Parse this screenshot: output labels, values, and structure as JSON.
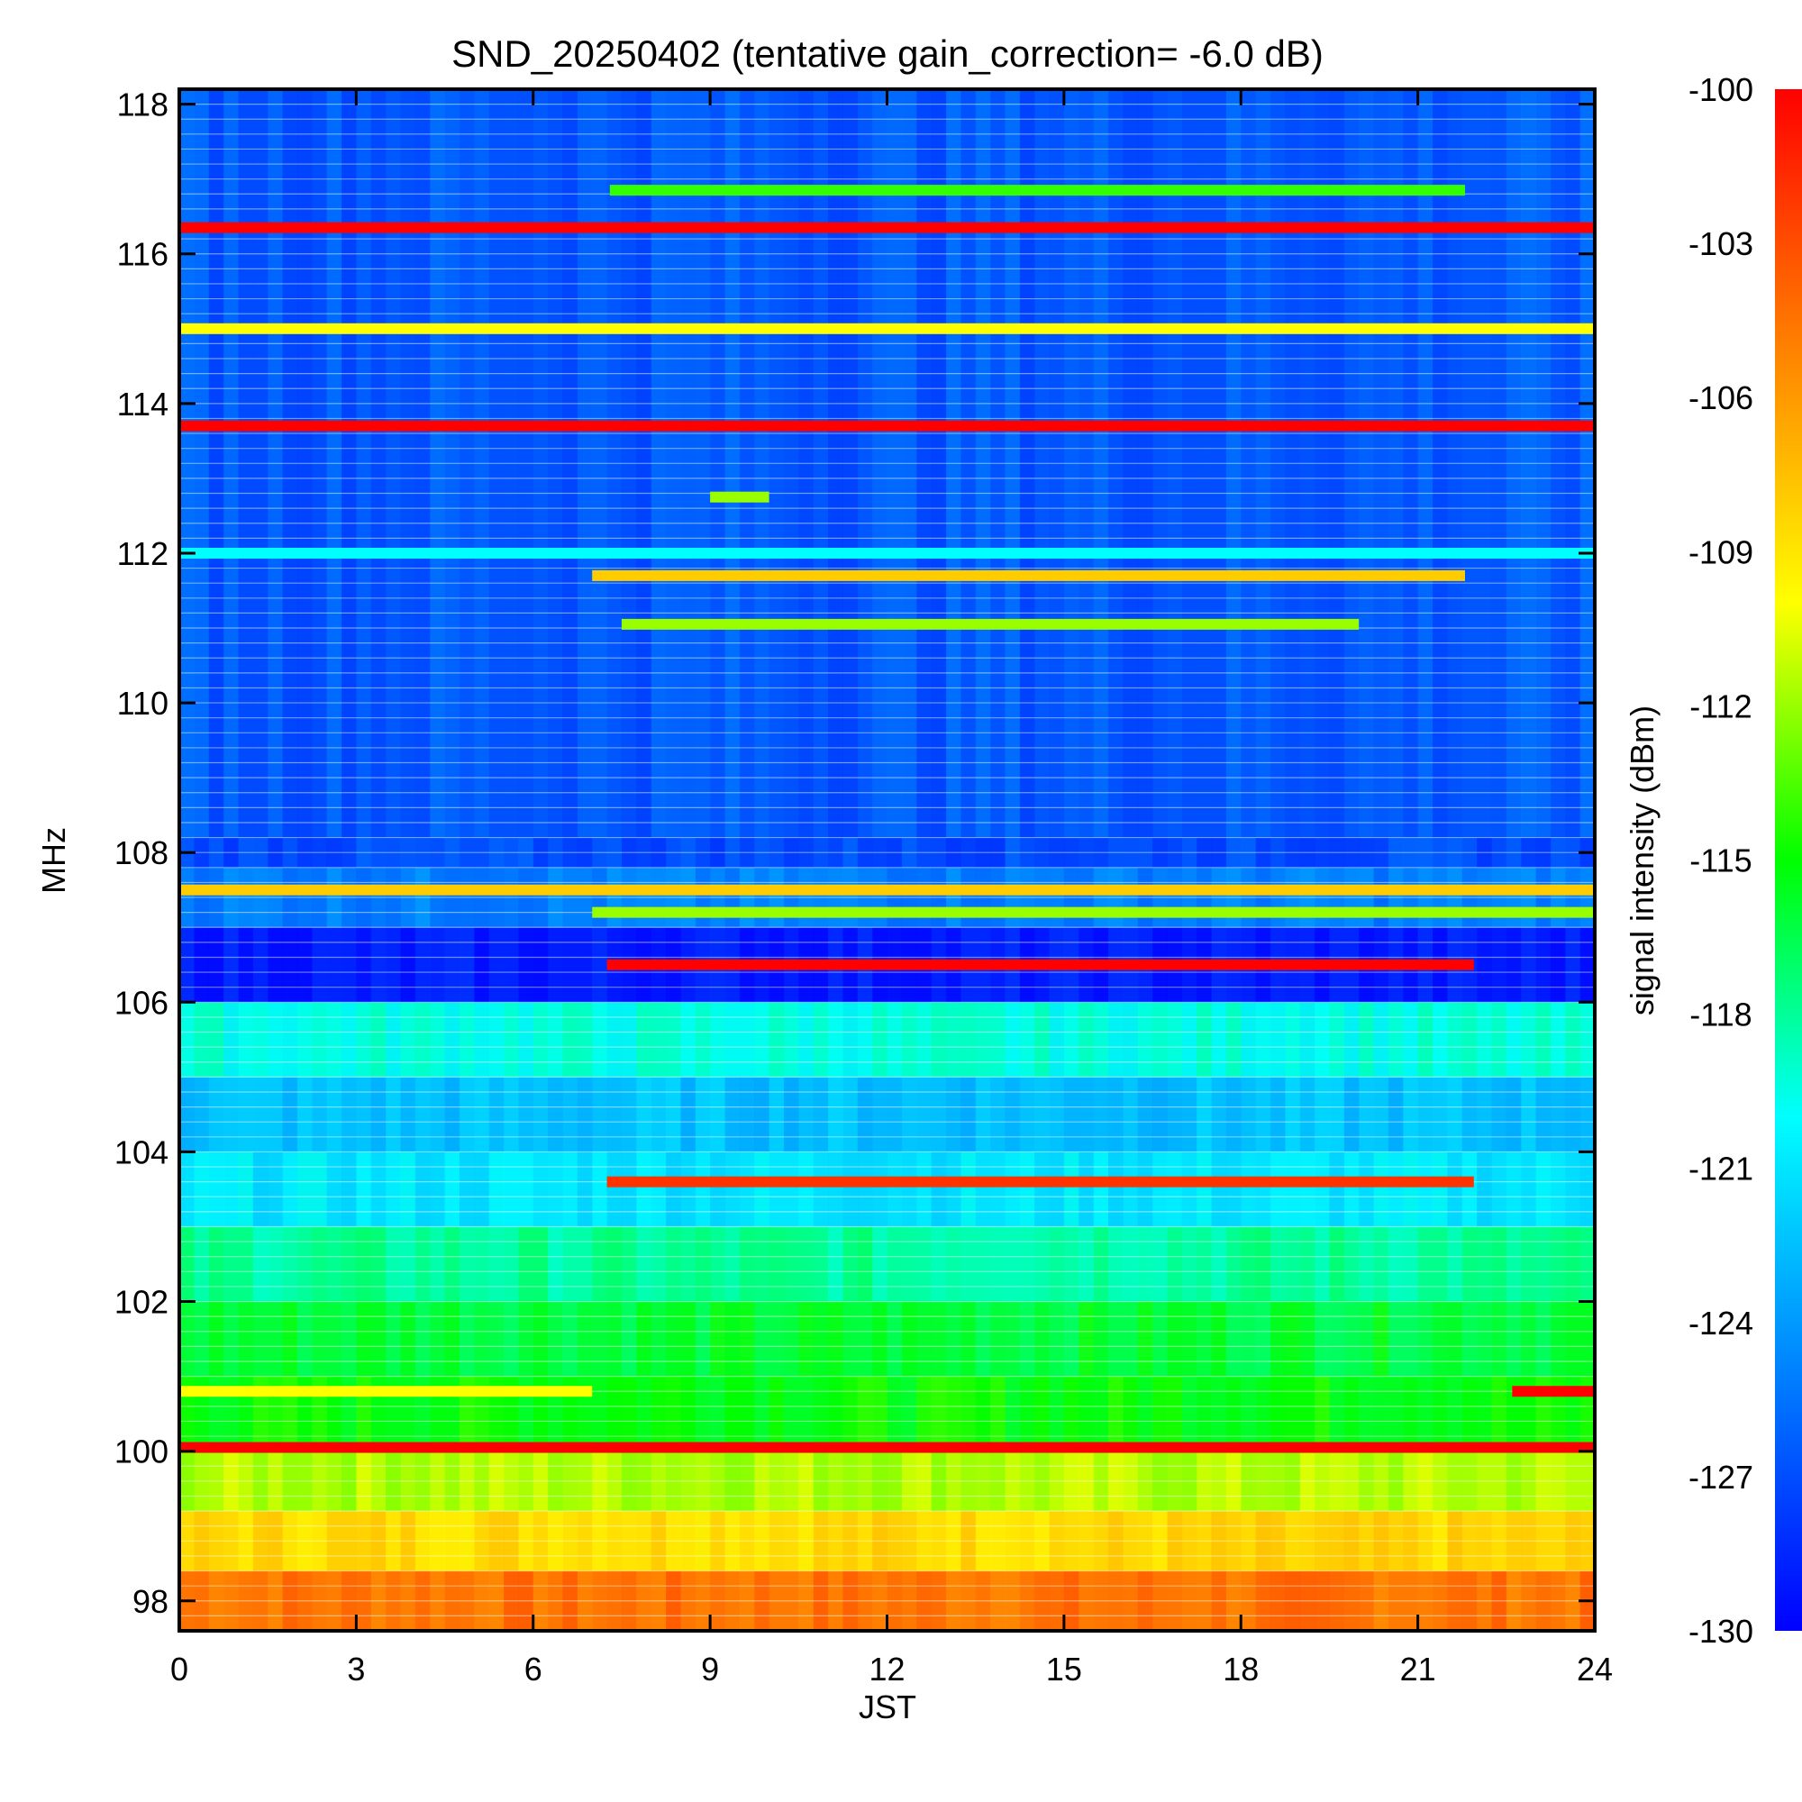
{
  "chart_data": {
    "type": "heatmap",
    "title": "SND_20250402 (tentative gain_correction= -6.0 dB)",
    "xlabel": "JST",
    "ylabel": "MHz",
    "colorbar_label": "signal intensity (dBm)",
    "xlim": [
      0,
      24
    ],
    "ylim": [
      97.6,
      118.2
    ],
    "x_ticks": [
      "0",
      "3",
      "6",
      "9",
      "12",
      "15",
      "18",
      "21",
      "24"
    ],
    "y_ticks": [
      "98",
      "100",
      "102",
      "104",
      "106",
      "108",
      "110",
      "112",
      "114",
      "116",
      "118"
    ],
    "color_range": [
      -130,
      -100
    ],
    "colorbar_ticks": [
      "-100",
      "-103",
      "-106",
      "-109",
      "-112",
      "-115",
      "-118",
      "-121",
      "-124",
      "-127",
      "-130"
    ],
    "colormap": [
      "#0000ff",
      "#0080ff",
      "#00ffff",
      "#00ff00",
      "#ffff00",
      "#ff8000",
      "#ff0000"
    ],
    "background_bands": [
      {
        "f_min": 97.6,
        "f_max": 98.4,
        "level": -104.5
      },
      {
        "f_min": 98.4,
        "f_max": 99.2,
        "level": -108.5
      },
      {
        "f_min": 99.2,
        "f_max": 100.0,
        "level": -111.5
      },
      {
        "f_min": 100.0,
        "f_max": 101.0,
        "level": -115
      },
      {
        "f_min": 101.0,
        "f_max": 102.0,
        "level": -116
      },
      {
        "f_min": 102.0,
        "f_max": 103.0,
        "level": -118
      },
      {
        "f_min": 103.0,
        "f_max": 104.0,
        "level": -121
      },
      {
        "f_min": 104.0,
        "f_max": 105.0,
        "level": -122.5
      },
      {
        "f_min": 105.0,
        "f_max": 106.0,
        "level": -119.5
      },
      {
        "f_min": 106.0,
        "f_max": 107.0,
        "level": -129
      },
      {
        "f_min": 107.0,
        "f_max": 107.8,
        "level": -125
      },
      {
        "f_min": 107.8,
        "f_max": 108.2,
        "level": -127
      },
      {
        "f_min": 108.2,
        "f_max": 118.2,
        "level": -126.5
      }
    ],
    "signals": [
      {
        "freq": 116.35,
        "t_start": 0,
        "t_end": 24,
        "level": -100
      },
      {
        "freq": 113.7,
        "t_start": 0,
        "t_end": 24,
        "level": -100
      },
      {
        "freq": 115.0,
        "t_start": 0,
        "t_end": 24,
        "level": -110
      },
      {
        "freq": 116.85,
        "t_start": 7.3,
        "t_end": 21.8,
        "level": -114
      },
      {
        "freq": 112.0,
        "t_start": 0,
        "t_end": 24,
        "level": -120
      },
      {
        "freq": 111.7,
        "t_start": 7,
        "t_end": 21.8,
        "level": -108
      },
      {
        "freq": 111.05,
        "t_start": 7.5,
        "t_end": 20,
        "level": -112
      },
      {
        "freq": 112.75,
        "t_start": 9,
        "t_end": 10,
        "level": -112
      },
      {
        "freq": 107.5,
        "t_start": 0,
        "t_end": 24,
        "level": -108
      },
      {
        "freq": 107.2,
        "t_start": 7,
        "t_end": 24,
        "level": -112
      },
      {
        "freq": 106.5,
        "t_start": 7.25,
        "t_end": 21.95,
        "level": -100
      },
      {
        "freq": 103.6,
        "t_start": 7.25,
        "t_end": 21.95,
        "level": -102
      },
      {
        "freq": 100.05,
        "t_start": 0,
        "t_end": 24,
        "level": -100
      },
      {
        "freq": 100.8,
        "t_start": 0,
        "t_end": 7,
        "level": -110
      },
      {
        "freq": 100.8,
        "t_start": 22.6,
        "t_end": 24,
        "level": -100
      }
    ]
  }
}
